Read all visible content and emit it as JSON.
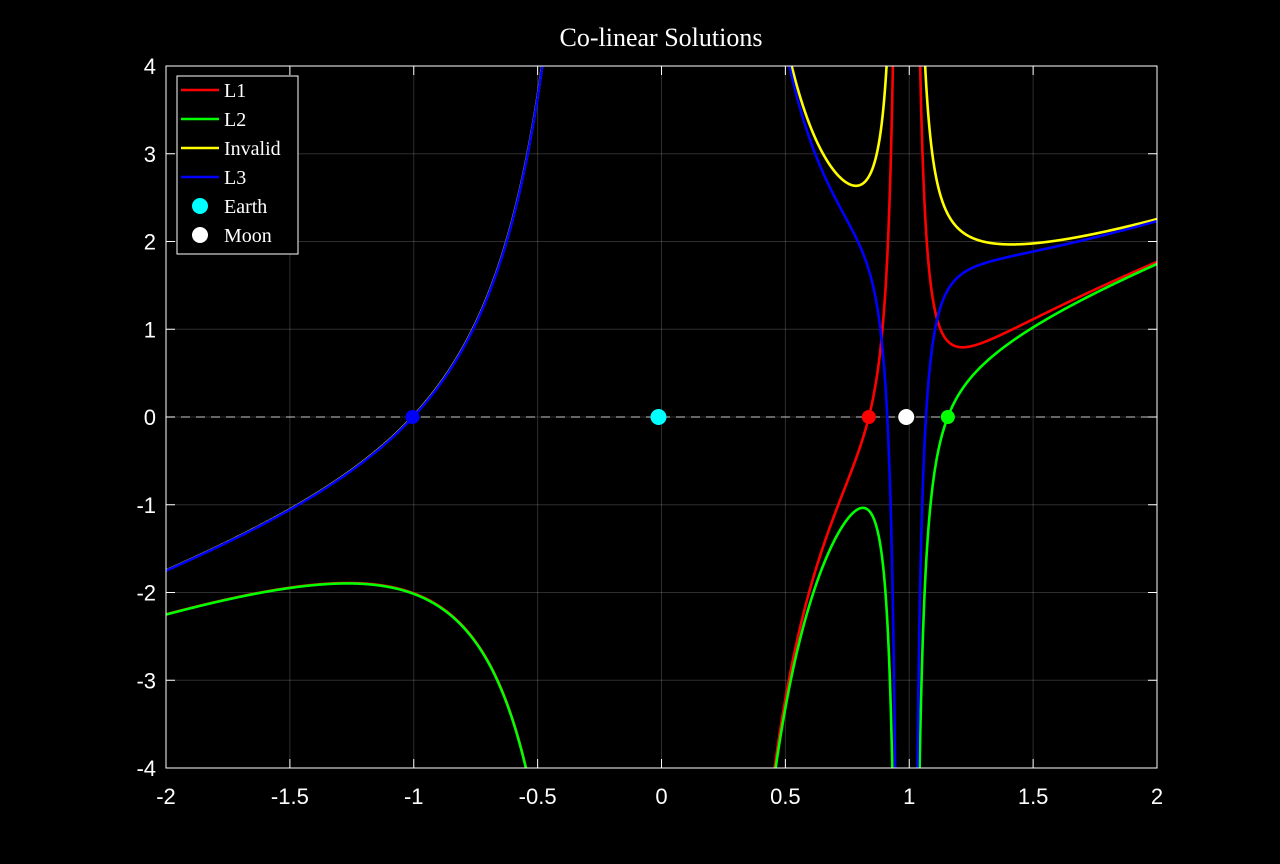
{
  "chart_data": {
    "type": "line",
    "title": "Co-linear Solutions",
    "xlabel": "",
    "ylabel": "",
    "xlim": [
      -2,
      2
    ],
    "ylim": [
      -4,
      4
    ],
    "xticks": [
      -2,
      -1.5,
      -1,
      -0.5,
      0,
      0.5,
      1,
      1.5,
      2
    ],
    "yticks": [
      -4,
      -3,
      -2,
      -1,
      0,
      1,
      2,
      3,
      4
    ],
    "xtick_labels": [
      "-2",
      "-1.5",
      "-1",
      "-0.5",
      "0",
      "0.5",
      "1",
      "1.5",
      "2"
    ],
    "ytick_labels": [
      "-4",
      "-3",
      "-2",
      "-1",
      "0",
      "1",
      "2",
      "3",
      "4"
    ],
    "grid": true,
    "background": "#000000",
    "axis_color": "#ffffff",
    "mu": 0.01215,
    "legend_position": "top-left",
    "series": [
      {
        "name": "L1",
        "color": "#ff0000",
        "sign1": 1,
        "sign2": -1
      },
      {
        "name": "L2",
        "color": "#00ff00",
        "sign1": 1,
        "sign2": 1
      },
      {
        "name": "Invalid",
        "color": "#ffff00",
        "sign1": -1,
        "sign2": -1
      },
      {
        "name": "L3",
        "color": "#0000ff",
        "sign1": -1,
        "sign2": 1
      }
    ],
    "points": [
      {
        "name": "Earth",
        "x": -0.01215,
        "y": 0,
        "color": "#00ffff"
      },
      {
        "name": "Moon",
        "x": 0.98785,
        "y": 0,
        "color": "#ffffff"
      },
      {
        "name": "",
        "x": 0.8369,
        "y": 0,
        "color": "#ff0000"
      },
      {
        "name": "",
        "x": 1.1557,
        "y": 0,
        "color": "#00ff00"
      },
      {
        "name": "",
        "x": -1.0051,
        "y": 0,
        "color": "#0000ff"
      }
    ],
    "reference_line": {
      "y": 0,
      "style": "dashed",
      "color": "#ffffff"
    }
  }
}
